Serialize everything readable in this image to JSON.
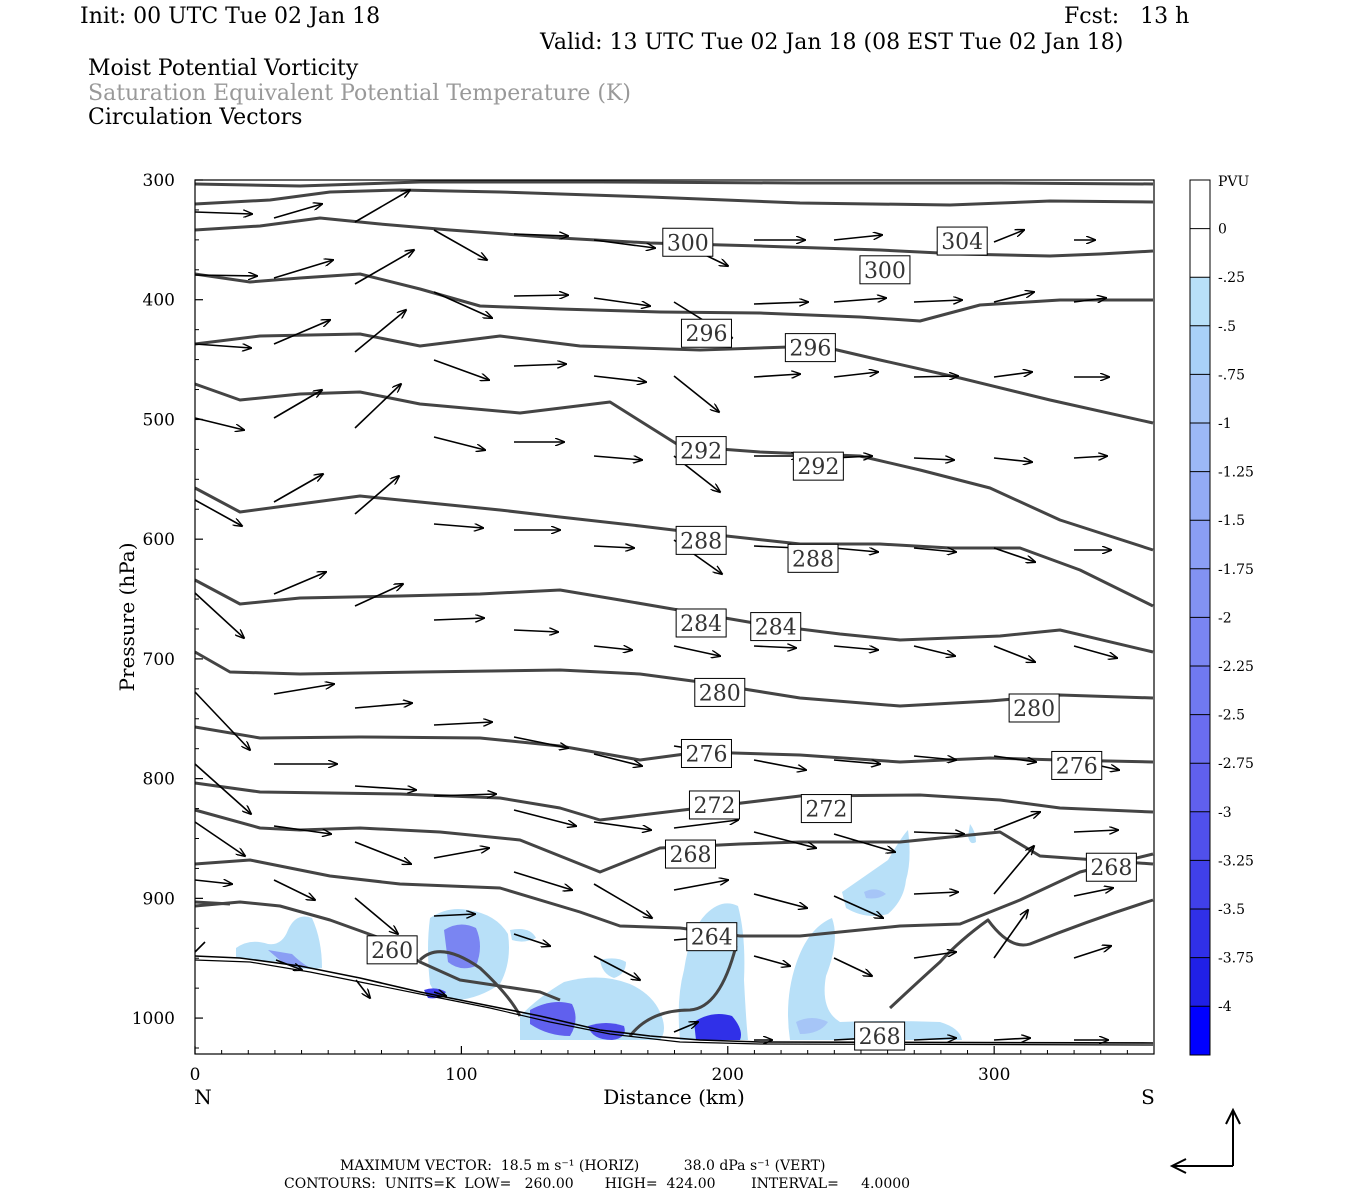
{
  "header": {
    "init": "Init: 00 UTC Tue 02 Jan 18",
    "fcst": "Fcst:   13 h",
    "valid": "Valid: 13 UTC Tue 02 Jan 18 (08 EST Tue 02 Jan 18)",
    "field1": "Moist Potential Vorticity",
    "field2": "Saturation Equivalent Potential Temperature (K)",
    "field3": "Circulation Vectors"
  },
  "colors": {
    "field2_gray": "#999999",
    "contour": "#444444",
    "shade_light": "#b8e0f8"
  },
  "footer": {
    "max_vector": "MAXIMUM VECTOR:  18.5 m s⁻¹ (HORIZ)          38.0 dPa s⁻¹ (VERT)",
    "contours": "CONTOURS:  UNITS=K  LOW=   260.00       HIGH=  424.00        INTERVAL=     4.0000"
  },
  "chart_data": {
    "type": "cross-section",
    "xlabel": "Distance (km)",
    "ylabel": "Pressure (hPa)",
    "xlim": [
      0,
      360
    ],
    "ylim": [
      1030,
      300
    ],
    "x_ticks": [
      "0",
      "100",
      "200",
      "300"
    ],
    "x_tick_values": [
      0,
      100,
      200,
      300
    ],
    "y_ticks": [
      "300",
      "400",
      "500",
      "600",
      "700",
      "800",
      "900",
      "1000"
    ],
    "y_tick_values": [
      300,
      400,
      500,
      600,
      700,
      800,
      900,
      1000
    ],
    "left_end_label": "N",
    "right_end_label": "S",
    "colorbar": {
      "title": "PVU",
      "tick_labels": [
        "0",
        "-.25",
        "-.5",
        "-.75",
        "-1",
        "-1.25",
        "-1.5",
        "-1.75",
        "-2",
        "-2.25",
        "-2.5",
        "-2.75",
        "-3",
        "-3.25",
        "-3.5",
        "-3.75",
        "-4"
      ],
      "colors": [
        "#ffffff",
        "#ffffff",
        "#b8e0f8",
        "#a9d1f8",
        "#a6c5f7",
        "#9cb8f6",
        "#93abf5",
        "#8a9ef4",
        "#8292f3",
        "#7a85f2",
        "#7079f1",
        "#6a6df0",
        "#6060ee",
        "#5050ec",
        "#4040ea",
        "#3030e8",
        "#2020e6",
        "#0000ff"
      ]
    },
    "contour_labels": [
      {
        "text": "300",
        "x": 185,
        "p": 352
      },
      {
        "text": "304",
        "x": 288,
        "p": 351
      },
      {
        "text": "300",
        "x": 259,
        "p": 375
      },
      {
        "text": "296",
        "x": 192,
        "p": 428
      },
      {
        "text": "296",
        "x": 231,
        "p": 440
      },
      {
        "text": "292",
        "x": 190,
        "p": 526
      },
      {
        "text": "292",
        "x": 234,
        "p": 539
      },
      {
        "text": "288",
        "x": 190,
        "p": 601
      },
      {
        "text": "288",
        "x": 232,
        "p": 616
      },
      {
        "text": "284",
        "x": 190,
        "p": 670
      },
      {
        "text": "284",
        "x": 218,
        "p": 673
      },
      {
        "text": "280",
        "x": 197,
        "p": 728
      },
      {
        "text": "280",
        "x": 315,
        "p": 741
      },
      {
        "text": "276",
        "x": 192,
        "p": 779
      },
      {
        "text": "276",
        "x": 331,
        "p": 789
      },
      {
        "text": "272",
        "x": 195,
        "p": 822
      },
      {
        "text": "272",
        "x": 237,
        "p": 825
      },
      {
        "text": "268",
        "x": 186,
        "p": 863
      },
      {
        "text": "268",
        "x": 344,
        "p": 874
      },
      {
        "text": "264",
        "x": 194,
        "p": 932
      },
      {
        "text": "260",
        "x": 74,
        "p": 943
      },
      {
        "text": "268",
        "x": 257,
        "p": 1015
      }
    ]
  }
}
